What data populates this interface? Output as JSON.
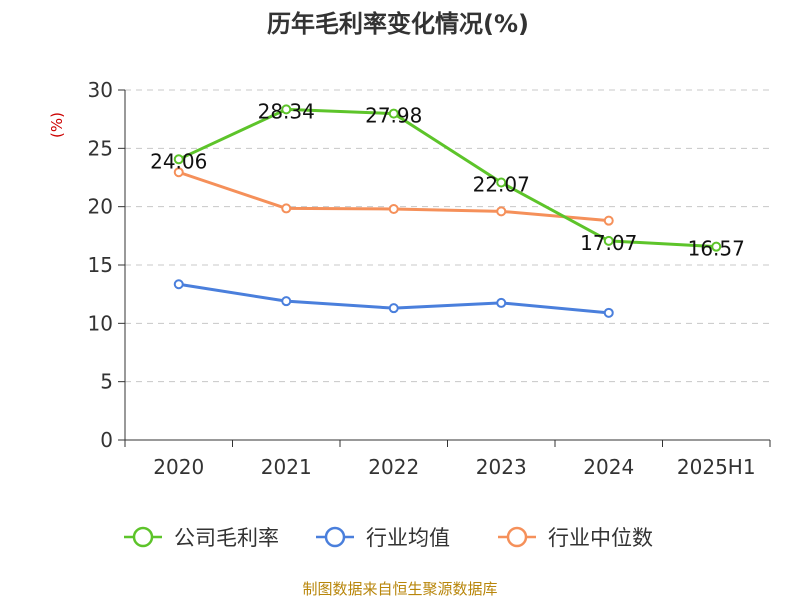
{
  "chart_data": {
    "type": "line",
    "title": "历年毛利率变化情况(%)",
    "ylabel": "(%)",
    "xlabel": "",
    "categories": [
      "2020",
      "2021",
      "2022",
      "2023",
      "2024",
      "2025H1"
    ],
    "ylim": [
      0,
      30
    ],
    "yticks": [
      0,
      5,
      10,
      15,
      20,
      25,
      30
    ],
    "grid": true,
    "legend_position": "bottom",
    "series": [
      {
        "name": "公司毛利率",
        "color": "#5dc42a",
        "values": [
          24.06,
          28.34,
          27.98,
          22.07,
          17.07,
          16.57
        ],
        "labels": [
          "24.06",
          "28.34",
          "27.98",
          "22.07",
          "17.07",
          "16.57"
        ]
      },
      {
        "name": "行业均值",
        "color": "#4a7fdc",
        "values": [
          13.35,
          11.9,
          11.3,
          11.75,
          10.9,
          null
        ],
        "labels": []
      },
      {
        "name": "行业中位数",
        "color": "#f5905a",
        "values": [
          22.95,
          19.85,
          19.8,
          19.6,
          18.8,
          null
        ],
        "labels": []
      }
    ]
  },
  "footer": {
    "source": "制图数据来自恒生聚源数据库"
  }
}
